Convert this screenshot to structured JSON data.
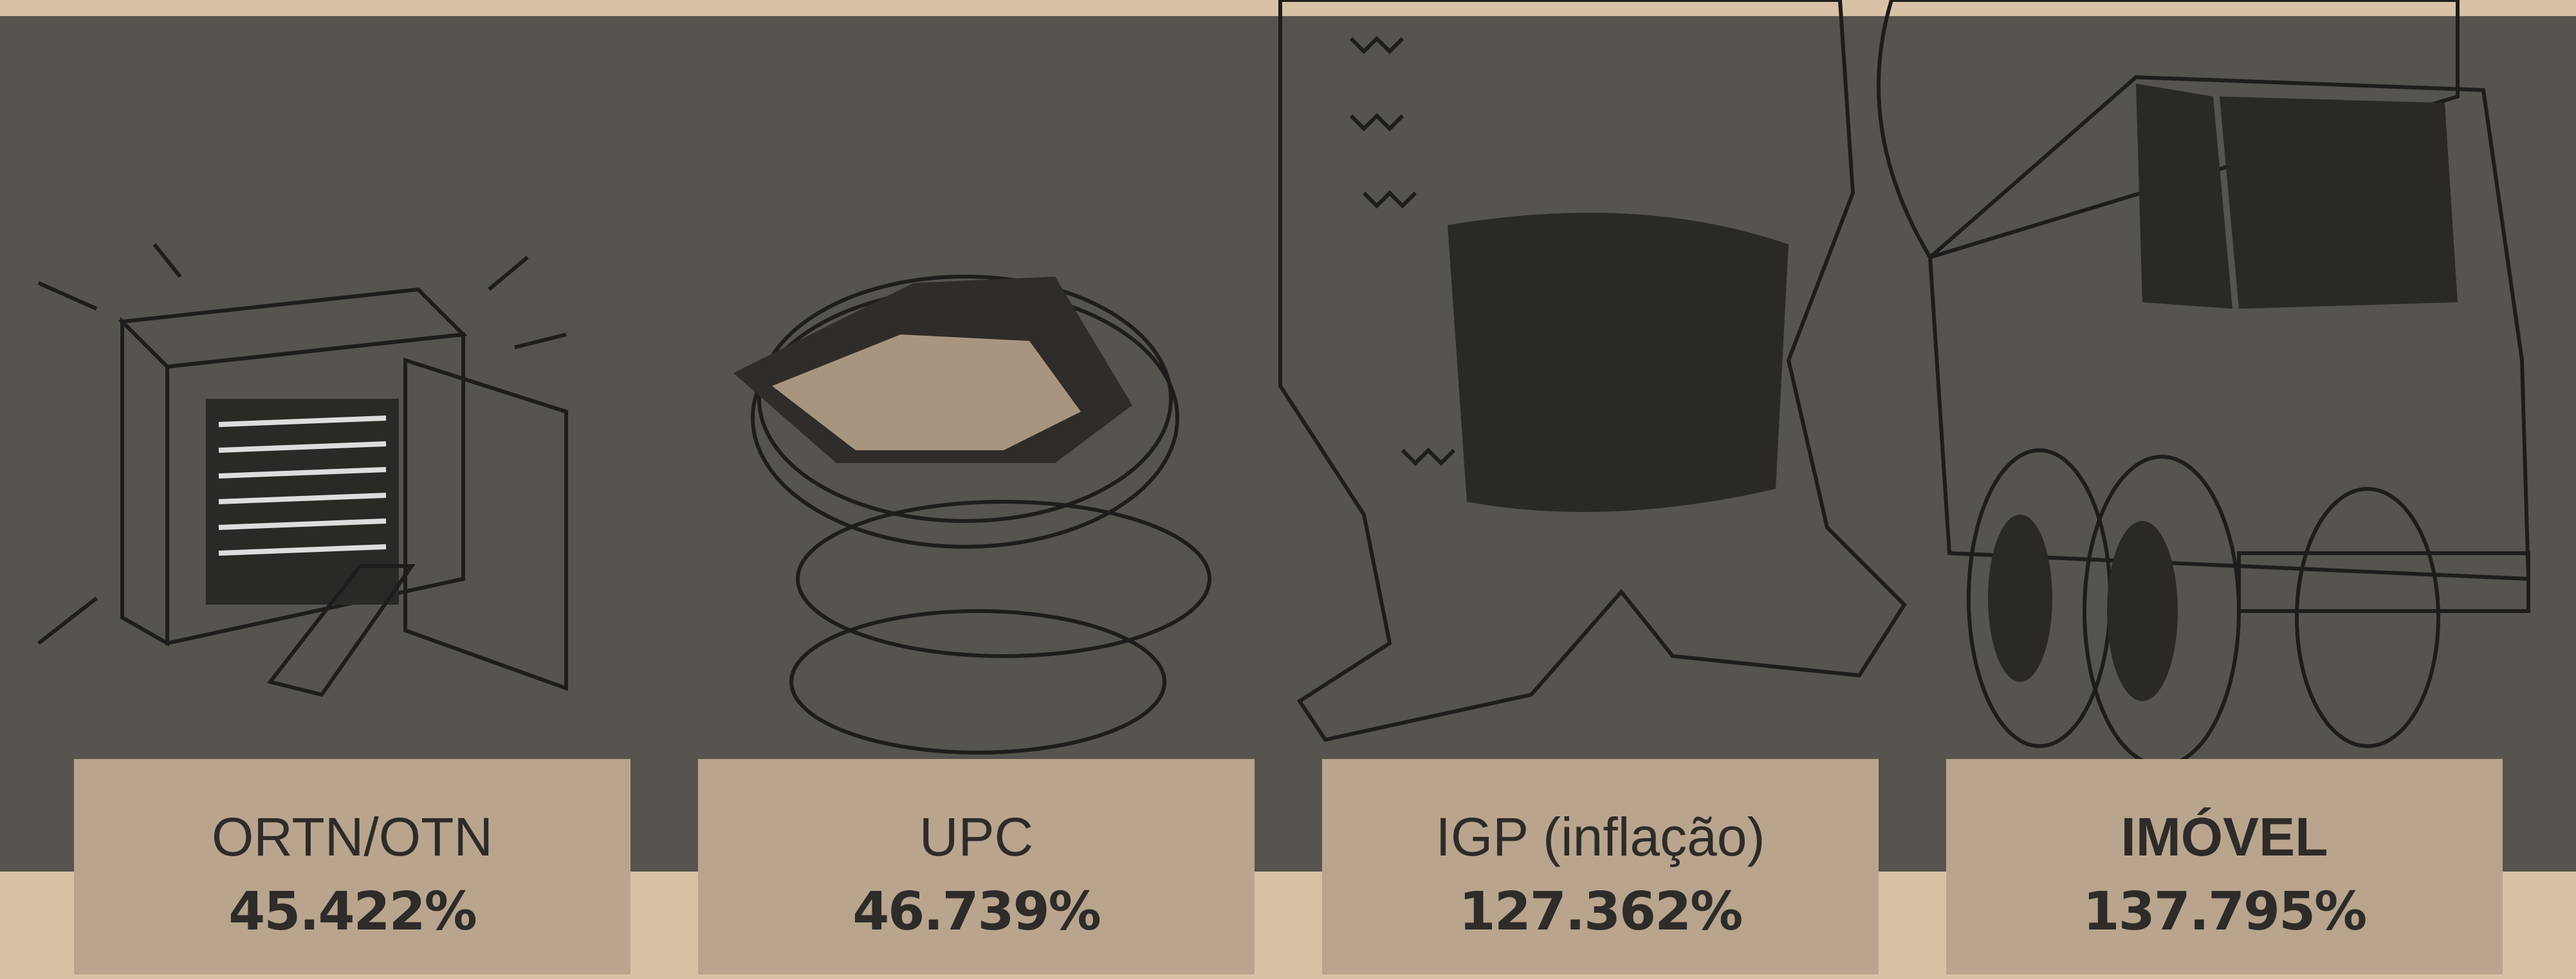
{
  "items": [
    {
      "label": "ORTN/OTN",
      "value": "45.422%"
    },
    {
      "label": "UPC",
      "value": "46.739%"
    },
    {
      "label": "IGP (inflação)",
      "value": "127.362%"
    },
    {
      "label": "IMÓVEL",
      "value": "137.795%"
    }
  ]
}
